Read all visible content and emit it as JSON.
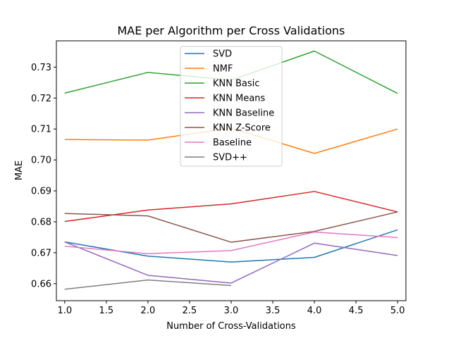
{
  "chart_data": {
    "type": "line",
    "title": "MAE per Algorithm per Cross Validations",
    "xlabel": "Number of Cross-Validations",
    "ylabel": "MAE",
    "xlim": [
      0.9,
      5.1
    ],
    "ylim": [
      0.6545,
      0.7385
    ],
    "x_ticks": [
      1.0,
      1.5,
      2.0,
      2.5,
      3.0,
      3.5,
      4.0,
      4.5,
      5.0
    ],
    "x_tick_labels": [
      "1.0",
      "1.5",
      "2.0",
      "2.5",
      "3.0",
      "3.5",
      "4.0",
      "4.5",
      "5.0"
    ],
    "y_ticks": [
      0.66,
      0.67,
      0.68,
      0.69,
      0.7,
      0.71,
      0.72,
      0.73
    ],
    "y_tick_labels": [
      "0.66",
      "0.67",
      "0.68",
      "0.69",
      "0.70",
      "0.71",
      "0.72",
      "0.73"
    ],
    "grid": false,
    "legend_position": "top-center",
    "series": [
      {
        "name": "SVD",
        "color": "#1f77b4",
        "x": [
          1,
          2,
          3,
          4,
          5
        ],
        "values": [
          0.6735,
          0.6689,
          0.667,
          0.6685,
          0.6774
        ]
      },
      {
        "name": "NMF",
        "color": "#ff7f0e",
        "x": [
          1,
          2,
          3,
          4,
          5
        ],
        "values": [
          0.7066,
          0.7064,
          0.7103,
          0.7021,
          0.71
        ]
      },
      {
        "name": "KNN Basic",
        "color": "#2ca02c",
        "x": [
          1,
          2,
          3,
          4,
          5
        ],
        "values": [
          0.7216,
          0.7283,
          0.7258,
          0.7352,
          0.7215
        ]
      },
      {
        "name": "KNN Means",
        "color": "#d62728",
        "x": [
          1,
          2,
          3,
          4,
          5
        ],
        "values": [
          0.6801,
          0.6838,
          0.6858,
          0.6898,
          0.6832
        ]
      },
      {
        "name": "KNN Baseline",
        "color": "#9467bd",
        "x": [
          1,
          2,
          3,
          4,
          5
        ],
        "values": [
          0.6735,
          0.6627,
          0.6602,
          0.6731,
          0.6691
        ]
      },
      {
        "name": "KNN Z-Score",
        "color": "#8c564b",
        "x": [
          1,
          2,
          3,
          4,
          5
        ],
        "values": [
          0.6827,
          0.6819,
          0.6734,
          0.6769,
          0.6832
        ]
      },
      {
        "name": "Baseline",
        "color": "#e377c2",
        "x": [
          1,
          2,
          3,
          4,
          5
        ],
        "values": [
          0.6721,
          0.6697,
          0.6707,
          0.6767,
          0.6749
        ]
      },
      {
        "name": "SVD++",
        "color": "#7f7f7f",
        "x": [
          1,
          2,
          3
        ],
        "values": [
          0.6582,
          0.6612,
          0.6594
        ]
      }
    ]
  }
}
